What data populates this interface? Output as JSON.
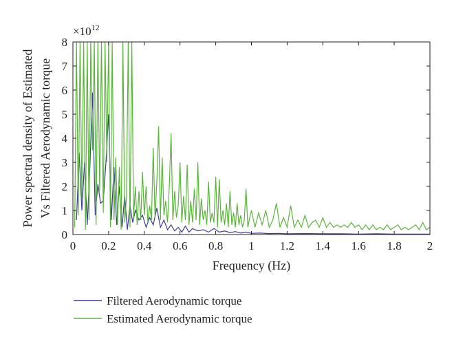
{
  "chart_data": {
    "type": "line",
    "ylabel_lines": [
      "Power spectral density of Estimated",
      "Vs Filtered Aerodynamic torque"
    ],
    "xlabel": "Frequency (Hz)",
    "y_multiplier": "×10",
    "y_exponent": "12",
    "xlim": [
      0,
      2
    ],
    "ylim": [
      0,
      8
    ],
    "x_ticks": [
      "0",
      "0.2",
      "0.4",
      "0.6",
      "0.8",
      "1",
      "1.2",
      "1.4",
      "1.6",
      "1.8",
      "2"
    ],
    "y_ticks": [
      "0",
      "1",
      "2",
      "3",
      "4",
      "5",
      "6",
      "7",
      "8"
    ],
    "y_unit_scale": 1000000000000.0,
    "legend_position": "bottom",
    "series": [
      {
        "name": "Filtered Aerodynamic torque",
        "color": "#3b3b9a",
        "x": [
          0.02,
          0.035,
          0.05,
          0.065,
          0.08,
          0.095,
          0.11,
          0.125,
          0.14,
          0.155,
          0.17,
          0.185,
          0.2,
          0.215,
          0.23,
          0.245,
          0.26,
          0.275,
          0.29,
          0.305,
          0.32,
          0.335,
          0.35,
          0.37,
          0.39,
          0.41,
          0.43,
          0.45,
          0.47,
          0.49,
          0.51,
          0.53,
          0.55,
          0.57,
          0.59,
          0.61,
          0.63,
          0.65,
          0.67,
          0.7,
          0.73,
          0.76,
          0.79,
          0.82,
          0.85,
          0.88,
          0.91,
          0.94,
          0.97,
          1.0,
          1.05,
          1.1,
          1.15,
          1.2,
          1.3,
          1.4,
          1.5,
          1.6,
          1.7,
          1.8,
          1.9,
          2.0
        ],
        "values": [
          0.6,
          3.4,
          1.0,
          3.0,
          0.4,
          2.8,
          5.9,
          0.8,
          2.1,
          1.3,
          1.4,
          3.0,
          5.0,
          0.6,
          2.8,
          0.4,
          2.0,
          0.3,
          1.6,
          0.2,
          1.2,
          0.5,
          1.0,
          0.6,
          0.8,
          0.3,
          0.7,
          0.4,
          1.1,
          0.3,
          0.6,
          0.2,
          0.4,
          0.15,
          0.3,
          0.1,
          0.35,
          0.1,
          0.25,
          0.15,
          0.2,
          0.1,
          0.25,
          0.1,
          0.15,
          0.08,
          0.12,
          0.06,
          0.1,
          0.05,
          0.06,
          0.04,
          0.05,
          0.03,
          0.04,
          0.03,
          0.03,
          0.02,
          0.03,
          0.02,
          0.02,
          0.02
        ]
      },
      {
        "name": "Estimated Aerodynamic torque",
        "color": "#5ab53b",
        "x": [
          0.01,
          0.02,
          0.03,
          0.04,
          0.05,
          0.06,
          0.07,
          0.08,
          0.09,
          0.1,
          0.11,
          0.12,
          0.13,
          0.14,
          0.15,
          0.16,
          0.17,
          0.18,
          0.19,
          0.2,
          0.21,
          0.22,
          0.23,
          0.24,
          0.25,
          0.26,
          0.27,
          0.28,
          0.29,
          0.3,
          0.31,
          0.32,
          0.33,
          0.34,
          0.35,
          0.36,
          0.37,
          0.38,
          0.39,
          0.4,
          0.41,
          0.42,
          0.43,
          0.44,
          0.45,
          0.46,
          0.47,
          0.48,
          0.49,
          0.5,
          0.51,
          0.52,
          0.53,
          0.54,
          0.55,
          0.56,
          0.57,
          0.58,
          0.59,
          0.6,
          0.61,
          0.62,
          0.63,
          0.64,
          0.65,
          0.66,
          0.67,
          0.68,
          0.69,
          0.7,
          0.71,
          0.72,
          0.73,
          0.74,
          0.75,
          0.76,
          0.77,
          0.78,
          0.79,
          0.8,
          0.81,
          0.82,
          0.83,
          0.84,
          0.85,
          0.86,
          0.87,
          0.88,
          0.89,
          0.9,
          0.91,
          0.92,
          0.93,
          0.94,
          0.95,
          0.96,
          0.97,
          0.98,
          0.99,
          1.0,
          1.02,
          1.04,
          1.06,
          1.08,
          1.1,
          1.12,
          1.14,
          1.16,
          1.18,
          1.2,
          1.22,
          1.24,
          1.26,
          1.28,
          1.3,
          1.32,
          1.34,
          1.36,
          1.38,
          1.4,
          1.42,
          1.44,
          1.46,
          1.48,
          1.5,
          1.52,
          1.54,
          1.56,
          1.58,
          1.6,
          1.62,
          1.64,
          1.66,
          1.68,
          1.7,
          1.72,
          1.74,
          1.76,
          1.78,
          1.8,
          1.82,
          1.84,
          1.86,
          1.88,
          1.9,
          1.92,
          1.94,
          1.96,
          1.98,
          2.0
        ],
        "values": [
          0.3,
          8.0,
          0.8,
          8.0,
          1.5,
          8.0,
          0.2,
          8.0,
          0.6,
          8.0,
          3.5,
          8.0,
          0.4,
          8.0,
          1.8,
          8.0,
          0.9,
          8.0,
          3.0,
          8.0,
          0.3,
          8.0,
          0.6,
          3.2,
          0.4,
          2.8,
          0.2,
          8.0,
          0.5,
          1.5,
          8.0,
          0.3,
          8.0,
          0.7,
          2.0,
          0.4,
          1.8,
          0.6,
          2.6,
          0.8,
          2.0,
          0.5,
          1.2,
          0.6,
          3.6,
          0.7,
          2.2,
          4.5,
          0.6,
          3.2,
          0.8,
          1.4,
          0.5,
          2.0,
          4.2,
          0.6,
          1.8,
          0.7,
          1.2,
          3.0,
          0.5,
          1.6,
          0.6,
          2.9,
          0.4,
          1.4,
          0.5,
          1.9,
          0.6,
          3.0,
          0.4,
          1.5,
          0.6,
          1.0,
          0.4,
          2.2,
          0.5,
          0.9,
          0.5,
          2.4,
          0.3,
          2.3,
          0.5,
          1.0,
          0.4,
          1.3,
          0.3,
          1.8,
          0.4,
          0.9,
          0.3,
          1.3,
          0.4,
          0.8,
          0.3,
          0.6,
          1.9,
          0.3,
          0.7,
          1.0,
          0.3,
          0.9,
          0.4,
          1.0,
          0.3,
          0.6,
          1.3,
          0.3,
          0.7,
          0.3,
          1.2,
          0.3,
          0.6,
          0.3,
          0.8,
          0.3,
          0.5,
          0.6,
          0.3,
          0.7,
          0.3,
          0.5,
          0.3,
          0.4,
          0.3,
          0.4,
          0.3,
          0.5,
          0.3,
          0.4,
          0.2,
          0.4,
          0.2,
          0.4,
          0.2,
          0.3,
          0.2,
          0.4,
          0.2,
          0.3,
          0.4,
          0.2,
          0.3,
          0.2,
          0.3,
          0.4,
          0.2,
          0.5,
          0.2,
          0.3
        ]
      }
    ]
  }
}
